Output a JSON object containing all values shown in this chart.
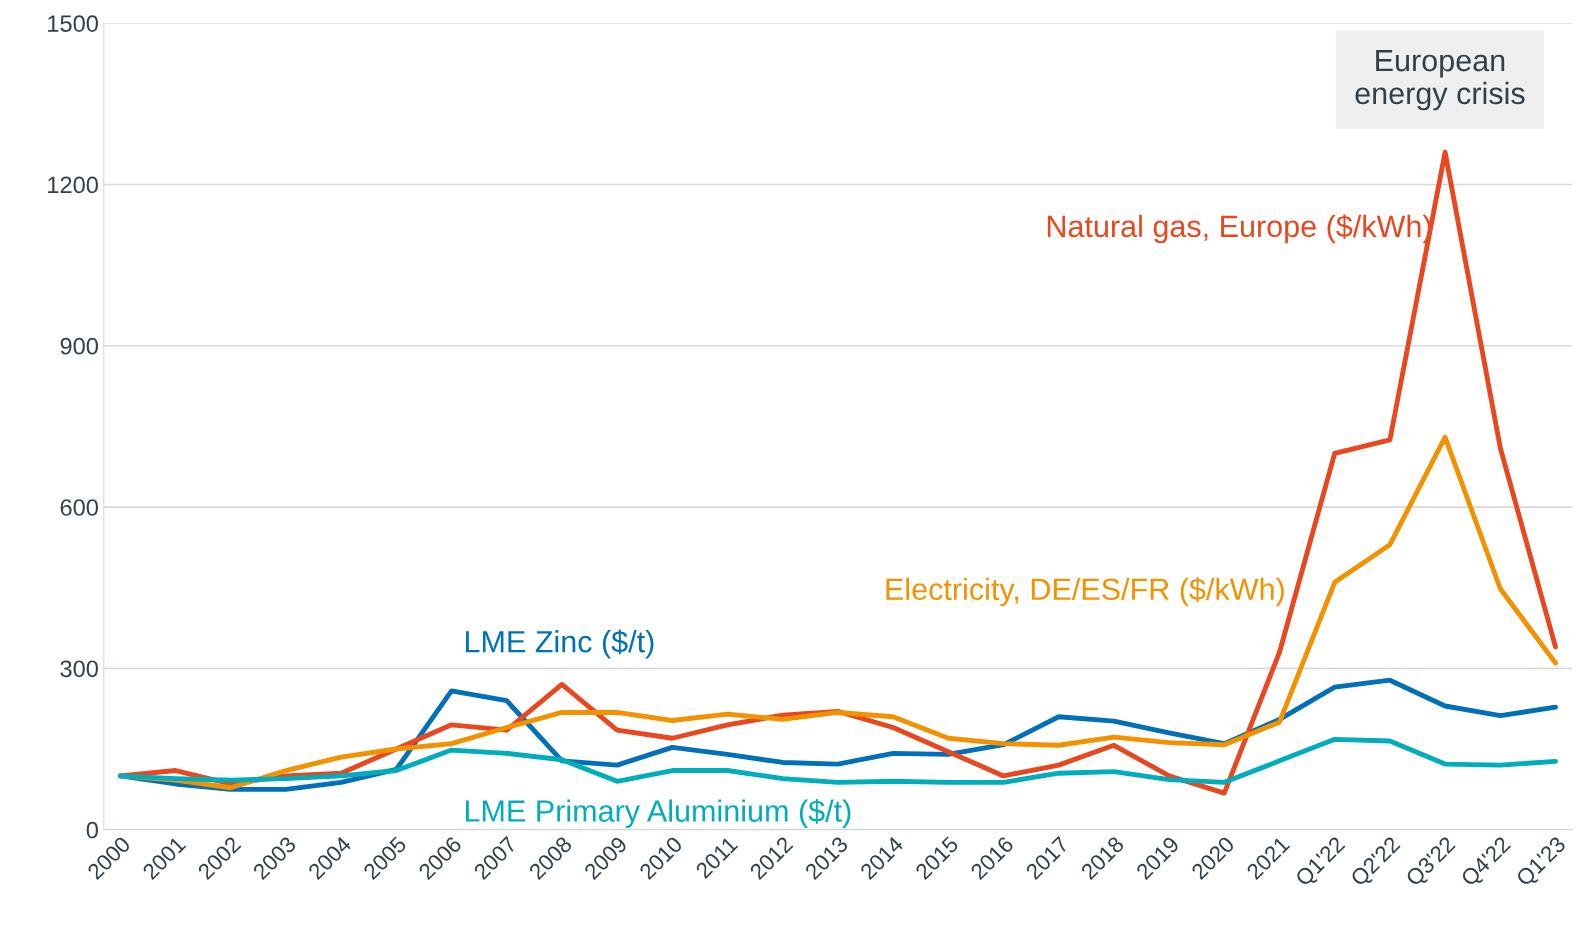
{
  "chart_data": {
    "type": "line",
    "categories": [
      "2000",
      "2001",
      "2002",
      "2003",
      "2004",
      "2005",
      "2006",
      "2007",
      "2008",
      "2009",
      "2010",
      "2011",
      "2012",
      "2013",
      "2014",
      "2015",
      "2016",
      "2017",
      "2018",
      "2019",
      "2020",
      "2021",
      "Q1'22",
      "Q2'22",
      "Q3'22",
      "Q4'22",
      "Q1'23"
    ],
    "series": [
      {
        "name": "LME Zinc ($/t)",
        "color": "#0070b8",
        "values": [
          100,
          85,
          75,
          75,
          88,
          112,
          258,
          240,
          128,
          120,
          153,
          140,
          125,
          122,
          142,
          140,
          158,
          210,
          202,
          180,
          160,
          205,
          265,
          278,
          230,
          212,
          228
        ]
      },
      {
        "name": "Natural gas, Europe ($/kWh)",
        "color": "#e8471f",
        "values": [
          100,
          110,
          85,
          100,
          105,
          150,
          195,
          185,
          270,
          185,
          170,
          195,
          213,
          220,
          190,
          145,
          100,
          120,
          157,
          100,
          68,
          330,
          700,
          725,
          1260,
          710,
          340
        ]
      },
      {
        "name": "Electricity, DE/ES/FR ($/kWh)",
        "color": "#f39200",
        "values": [
          100,
          92,
          78,
          110,
          135,
          150,
          160,
          190,
          218,
          218,
          203,
          215,
          205,
          218,
          210,
          170,
          160,
          157,
          172,
          162,
          158,
          200,
          460,
          530,
          730,
          448,
          310
        ]
      },
      {
        "name": "LME Primary Aluminium ($/t)",
        "color": "#00aebb",
        "values": [
          100,
          95,
          92,
          95,
          100,
          110,
          148,
          142,
          130,
          90,
          110,
          110,
          95,
          88,
          90,
          88,
          88,
          105,
          108,
          93,
          88,
          128,
          168,
          165,
          122,
          120,
          127
        ]
      }
    ],
    "ylim": [
      0,
      1500
    ],
    "yticks": [
      0,
      300,
      600,
      900,
      1200,
      1500
    ],
    "grid": "y",
    "legend": false,
    "marker": "none",
    "line_style": "solid",
    "annotations": [
      "European\nenergy crisis"
    ]
  }
}
